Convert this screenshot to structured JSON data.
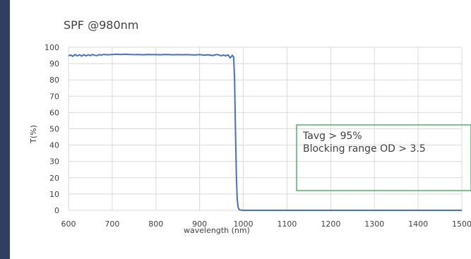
{
  "chart_data": {
    "type": "line",
    "title": "SPF @980nm",
    "xlabel": "wavelength (nm)",
    "ylabel": "T(%)",
    "xlim": [
      600,
      1500
    ],
    "ylim": [
      0,
      100
    ],
    "x_ticks": [
      "600",
      "700",
      "800",
      "900",
      "1000",
      "1100",
      "1200",
      "1300",
      "1400",
      "1500"
    ],
    "y_ticks": [
      "0",
      "10",
      "20",
      "30",
      "40",
      "50",
      "60",
      "70",
      "80",
      "90",
      "100"
    ],
    "grid": true,
    "series": [
      {
        "color": "#4472c4",
        "x": [
          600,
          605,
          610,
          615,
          620,
          625,
          630,
          635,
          640,
          645,
          650,
          655,
          660,
          665,
          670,
          675,
          680,
          690,
          700,
          710,
          720,
          730,
          740,
          750,
          760,
          770,
          780,
          790,
          800,
          810,
          820,
          830,
          840,
          850,
          860,
          870,
          880,
          890,
          900,
          910,
          920,
          930,
          940,
          950,
          955,
          960,
          965,
          970,
          975,
          978,
          980,
          982,
          984,
          986,
          988,
          990,
          992,
          995,
          1000,
          1010,
          1050,
          1100,
          1200,
          1300,
          1400,
          1500
        ],
        "values": [
          94.8,
          95.3,
          94.4,
          95.6,
          94.7,
          95.4,
          94.6,
          95.5,
          94.7,
          95.4,
          94.9,
          95.6,
          95.1,
          94.9,
          95.5,
          95.2,
          95.6,
          95.4,
          95.6,
          95.7,
          95.6,
          95.7,
          95.6,
          95.5,
          95.6,
          95.4,
          95.6,
          95.5,
          95.5,
          95.4,
          95.6,
          95.5,
          95.4,
          95.5,
          95.4,
          95.5,
          95.4,
          95.3,
          95.5,
          95.2,
          95.4,
          95.0,
          95.6,
          94.8,
          95.3,
          94.7,
          95.4,
          93.5,
          95.1,
          94.0,
          80.0,
          50.0,
          22.0,
          7.0,
          2.0,
          0.6,
          0.3,
          0.1,
          0.0,
          0.0,
          0.0,
          0.0,
          0.0,
          0.0,
          0.0,
          0.0
        ]
      }
    ],
    "annotations": [
      "Tavg > 95%",
      "Blocking range OD > 3.5"
    ],
    "annotation_box_color": "#3aa655"
  }
}
